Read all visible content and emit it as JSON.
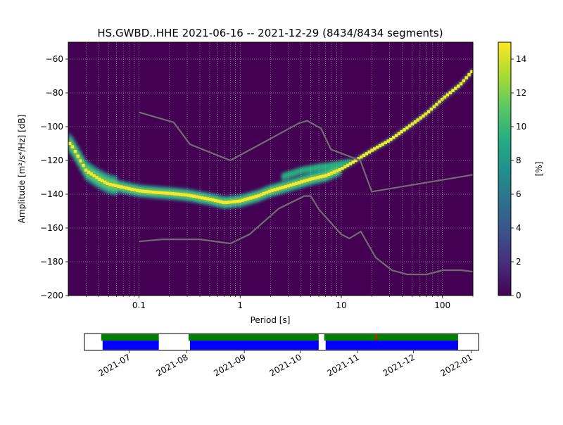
{
  "chart_data": [
    {
      "type": "heatmap",
      "title": "HS.GWBD..HHE   2021-06-16 -- 2021-12-29  (8434/8434 segments)",
      "xlabel": "Period [s]",
      "ylabel": "Amplitude [m²/s⁴/Hz] [dB]",
      "x_scale": "log",
      "xlim": [
        0.02,
        200
      ],
      "ylim": [
        -200,
        -50
      ],
      "x_ticks": [
        0.1,
        1,
        10,
        100
      ],
      "x_tick_labels": [
        "0.1",
        "1",
        "10",
        "100"
      ],
      "y_ticks": [
        -200,
        -180,
        -160,
        -140,
        -120,
        -100,
        -80,
        -60
      ],
      "y_tick_labels": [
        "−200",
        "−180",
        "−160",
        "−140",
        "−120",
        "−100",
        "−80",
        "−60"
      ],
      "grid": true,
      "colormap": "viridis",
      "colorbar": {
        "label": "[%]",
        "range": [
          0,
          15
        ],
        "ticks": [
          0,
          2,
          4,
          6,
          8,
          10,
          12,
          14
        ],
        "tick_labels": [
          "0",
          "2",
          "4",
          "6",
          "8",
          "10",
          "12",
          "14"
        ]
      },
      "mode_curve": {
        "period": [
          0.021,
          0.03,
          0.04,
          0.05,
          0.07,
          0.1,
          0.15,
          0.2,
          0.3,
          0.5,
          0.7,
          1.0,
          1.5,
          2,
          3,
          5,
          7,
          10,
          13,
          20,
          30,
          50,
          70,
          100,
          150,
          200
        ],
        "db": [
          -110,
          -126,
          -131,
          -134,
          -136,
          -138,
          -139,
          -139.5,
          -140.5,
          -143,
          -145,
          -144,
          -141,
          -138,
          -135,
          -131,
          -129,
          -125,
          -121,
          -114,
          -108,
          -98.5,
          -92,
          -83.5,
          -75,
          -66.5
        ]
      },
      "secondary_band": {
        "period": [
          2.5,
          4,
          6,
          8,
          10,
          13
        ],
        "db": [
          -130,
          -126,
          -124,
          -123,
          -122,
          -121
        ]
      },
      "noise_models": {
        "nhnm": {
          "period": [
            0.1,
            0.22,
            0.32,
            0.8,
            3.8,
            4.6,
            6.3,
            7.9,
            15.4,
            20,
            354.8
          ],
          "db": [
            -91.5,
            -97.4,
            -110.5,
            -120,
            -98,
            -96.5,
            -101,
            -113.5,
            -120,
            -138.5,
            -126
          ]
        },
        "nlnm": {
          "period": [
            0.1,
            0.17,
            0.4,
            0.8,
            1.24,
            2.4,
            4.3,
            5.0,
            6.0,
            10.0,
            12.0,
            15.6,
            21.9,
            31.6,
            45,
            70,
            101,
            154,
            328
          ],
          "db": [
            -168,
            -166.7,
            -166.7,
            -169.2,
            -163.7,
            -148.6,
            -141.1,
            -141.1,
            -149,
            -163.8,
            -166.2,
            -162.1,
            -177.5,
            -185,
            -187.5,
            -187.5,
            -185,
            -185,
            -187.5
          ]
        }
      }
    },
    {
      "type": "timeline",
      "x_tick_labels": [
        "2021-07",
        "2021-08",
        "2021-09",
        "2021-10",
        "2021-11",
        "2021-12",
        "2022-01"
      ],
      "data_availability": [
        {
          "start": "2021-06-16",
          "end": "2021-07-17"
        },
        {
          "start": "2021-08-02",
          "end": "2021-10-11"
        },
        {
          "start": "2021-10-14",
          "end": "2021-12-25"
        }
      ],
      "gaps": [
        "2021-11-11"
      ],
      "colors": {
        "data": "#0000ff",
        "psd": "#008000",
        "gap": "#ff0000"
      }
    }
  ]
}
